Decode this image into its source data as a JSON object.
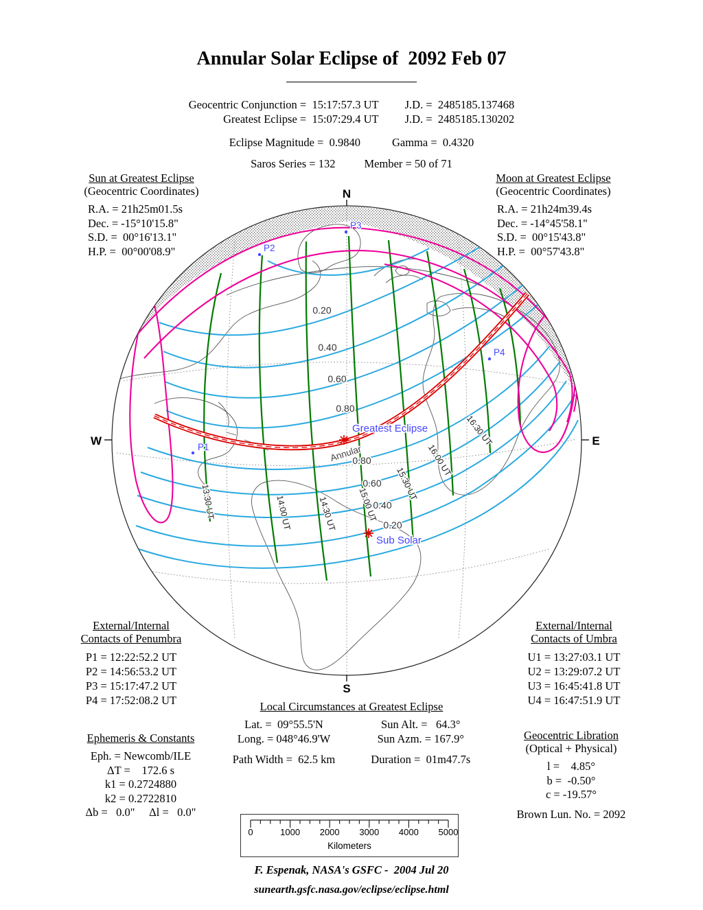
{
  "title": "Annular Solar Eclipse of  2092 Feb 07",
  "header": {
    "rows": [
      {
        "left": "Geocentric Conjunction =  15:17:57.3 UT",
        "right": "J.D. =  2485185.137468"
      },
      {
        "left": "Greatest Eclipse =  15:07:29.4 UT",
        "right": "J.D. =  2485185.130202"
      }
    ],
    "magnitude_left": "Eclipse Magnitude =  0.9840",
    "magnitude_right": "Gamma =  0.4320",
    "saros_left": "Saros Series = 132",
    "saros_right": "Member = 50 of 71"
  },
  "sun_block": {
    "title": "Sun at Greatest Eclipse",
    "subtitle": "(Geocentric Coordinates)",
    "lines": [
      "R.A. = 21h25m01.5s",
      "Dec. = -15°10'15.8\"",
      "S.D. =  00°16'13.1\"",
      "H.P. =  00°00'08.9\""
    ]
  },
  "moon_block": {
    "title": "Moon at Greatest Eclipse",
    "subtitle": "(Geocentric Coordinates)",
    "lines": [
      "R.A. = 21h24m39.4s",
      "Dec. = -14°45'58.1\"",
      "S.D. =  00°15'43.8\"",
      "H.P. =  00°57'43.8\""
    ]
  },
  "map": {
    "compass": {
      "n": "N",
      "s": "S",
      "w": "W",
      "e": "E"
    },
    "ge_label": "Greatest Eclipse",
    "sub_solar_label": "Sub Solar",
    "annular_label": "Annular",
    "points": [
      "P1",
      "P2",
      "P3",
      "P4"
    ],
    "ut_labels": [
      "13:30 UT",
      "14:00 UT",
      "14:30 UT",
      "15:00 UT",
      "15:30 UT",
      "16:00 UT",
      "16:30 UT"
    ],
    "mag_upper": [
      "0.20",
      "0.40",
      "0.60",
      "0.80"
    ],
    "mag_lower": [
      "0.80",
      "0.60",
      "0.40",
      "0.20"
    ],
    "colors": {
      "red": "#dd0000",
      "magenta": "#ee0099",
      "green": "#007a00",
      "cyan": "#2aa9e0",
      "blue": "#4646ff"
    }
  },
  "penumbra_block": {
    "title1": "External/Internal",
    "title2": "Contacts of Penumbra",
    "lines": [
      "P1 = 12:22:52.2 UT",
      "P2 = 14:56:53.2 UT",
      "P3 = 15:17:47.2 UT",
      "P4 = 17:52:08.2 UT"
    ]
  },
  "umbra_block": {
    "title1": "External/Internal",
    "title2": "Contacts of Umbra",
    "lines": [
      "U1 = 13:27:03.1 UT",
      "U2 = 13:29:07.2 UT",
      "U3 = 16:45:41.8 UT",
      "U4 = 16:47:51.9 UT"
    ]
  },
  "local_block": {
    "title": "Local Circumstances at Greatest Eclipse",
    "rows": [
      [
        "Lat. =  09°55.5'N",
        "Sun Alt. =   64.3°"
      ],
      [
        "Long. = 048°46.9'W",
        "Sun Azm. = 167.9°"
      ],
      [
        "Path Width =  62.5 km",
        "Duration =  01m47.7s"
      ]
    ]
  },
  "ephemeris_block": {
    "title": "Ephemeris & Constants",
    "lines": [
      "Eph. = Newcomb/ILE",
      "ΔT =    172.6 s",
      "k1 = 0.2724880",
      "k2 = 0.2722810",
      "Δb =   0.0\"     Δl =   0.0\""
    ]
  },
  "libration_block": {
    "title": "Geocentric Libration",
    "subtitle": "(Optical + Physical)",
    "lines": [
      "l =    4.85°",
      "b =  -0.50°",
      "c = -19.57°"
    ],
    "footer": "Brown Lun. No. = 2092"
  },
  "scale_bar": {
    "ticks": [
      "0",
      "1000",
      "2000",
      "3000",
      "4000",
      "5000"
    ],
    "unit": "Kilometers",
    "max": 5000,
    "minor_step": 250,
    "major_step": 1000
  },
  "footer": {
    "credit": "F. Espenak, NASA's GSFC -  2004 Jul 20",
    "url": "sunearth.gsfc.nasa.gov/eclipse/eclipse.html"
  }
}
